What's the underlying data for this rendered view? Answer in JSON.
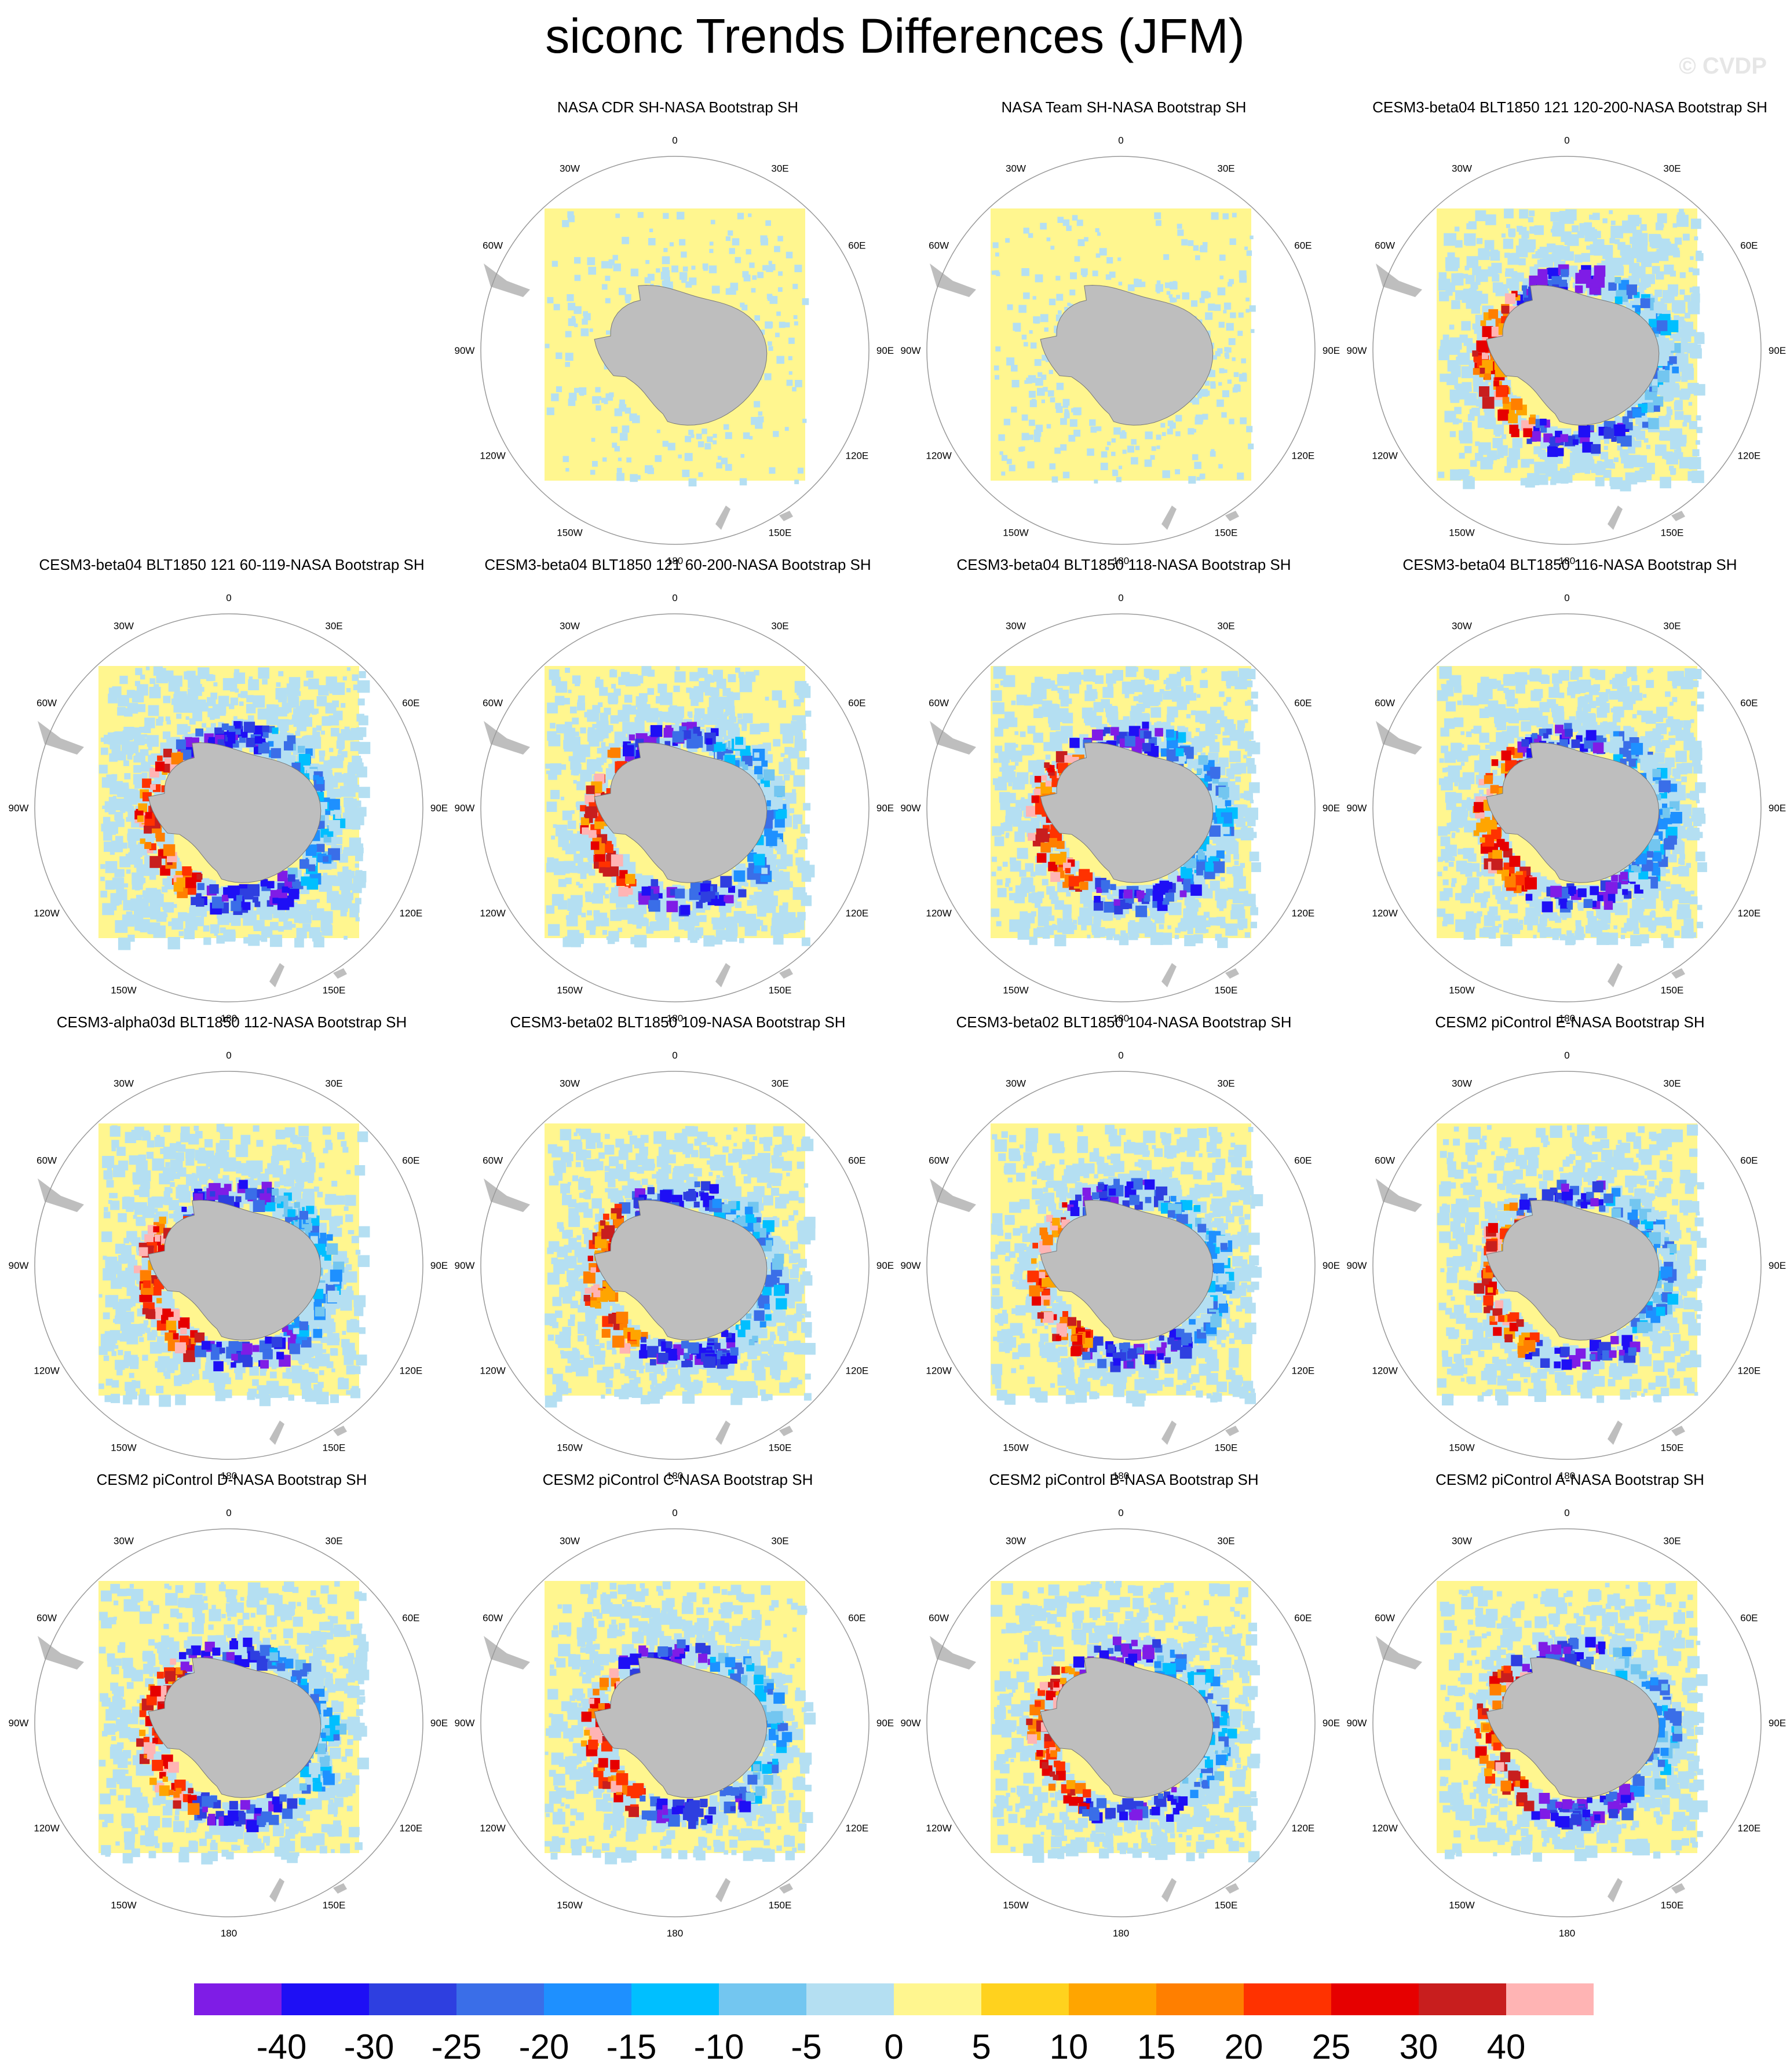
{
  "title": "siconc Trends Differences (JFM)",
  "watermark": "© CVDP",
  "map_labels": {
    "lon_0": "0",
    "lon_30e": "30E",
    "lon_60e": "60E",
    "lon_90e": "90E",
    "lon_120e": "120E",
    "lon_150e": "150E",
    "lon_180": "180",
    "lon_150w": "150W",
    "lon_120w": "120W",
    "lon_90w": "90W",
    "lon_60w": "60W",
    "lon_30w": "30W"
  },
  "colors": {
    "levels": [
      "#7f1ce6",
      "#1e0ff5",
      "#2e3fe0",
      "#3a6ee8",
      "#1e90ff",
      "#00bfff",
      "#73c6f0",
      "#b4dff2",
      "#fff68f",
      "#ffd21e",
      "#ffa500",
      "#ff7f00",
      "#ff3200",
      "#e60000",
      "#c81e1e",
      "#ffb4b4"
    ],
    "land": "#bebebe",
    "rim": "#999999"
  },
  "chart_data": {
    "type": "heatmap",
    "title": "siconc Trends Differences (JFM)",
    "colorbar_ticks": [
      "-40",
      "-30",
      "-25",
      "-20",
      "-15",
      "-10",
      "-5",
      "0",
      "5",
      "10",
      "15",
      "20",
      "25",
      "30",
      "40"
    ],
    "panels": [
      {
        "title": "NASA CDR SH-NASA Bootstrap SH",
        "intensity": 0.1,
        "seed": 1
      },
      {
        "title": "NASA Team SH-NASA Bootstrap SH",
        "intensity": 0.15,
        "seed": 2
      },
      {
        "title": "CESM3-beta04 BLT1850 121 120-200-NASA Bootstrap SH",
        "intensity": 0.9,
        "seed": 3
      },
      {
        "title": "CESM3-beta04 BLT1850 121 60-119-NASA Bootstrap SH",
        "intensity": 1.0,
        "seed": 4
      },
      {
        "title": "CESM3-beta04 BLT1850 121 60-200-NASA Bootstrap SH",
        "intensity": 0.85,
        "seed": 5
      },
      {
        "title": "CESM3-beta04 BLT1850 118-NASA Bootstrap SH",
        "intensity": 1.0,
        "seed": 6
      },
      {
        "title": "CESM3-beta04 BLT1850 116-NASA Bootstrap SH",
        "intensity": 1.0,
        "seed": 7
      },
      {
        "title": "CESM3-alpha03d BLT1850 112-NASA Bootstrap SH",
        "intensity": 0.95,
        "seed": 8
      },
      {
        "title": "CESM3-beta02 BLT1850 109-NASA Bootstrap SH",
        "intensity": 0.95,
        "seed": 9
      },
      {
        "title": "CESM3-beta02 BLT1850 104-NASA Bootstrap SH",
        "intensity": 0.95,
        "seed": 10
      },
      {
        "title": "CESM2 piControl E-NASA Bootstrap SH",
        "intensity": 0.8,
        "seed": 11
      },
      {
        "title": "CESM2 piControl D-NASA Bootstrap SH",
        "intensity": 0.8,
        "seed": 12
      },
      {
        "title": "CESM2 piControl C-NASA Bootstrap SH",
        "intensity": 0.75,
        "seed": 13
      },
      {
        "title": "CESM2 piControl B-NASA Bootstrap SH",
        "intensity": 0.8,
        "seed": 14
      },
      {
        "title": "CESM2 piControl A-NASA Bootstrap SH",
        "intensity": 0.8,
        "seed": 15
      }
    ]
  }
}
